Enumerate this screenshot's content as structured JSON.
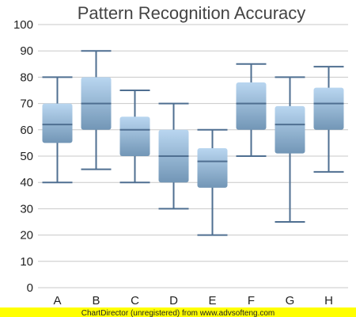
{
  "footer": {
    "text": "ChartDirector (unregistered) from www.advsofteng.com",
    "background": "#ffff00"
  },
  "chart_data": {
    "type": "box",
    "title": "Pattern Recognition Accuracy",
    "xlabel": "",
    "ylabel": "",
    "ylim": [
      0,
      100
    ],
    "yticks": [
      0,
      10,
      20,
      30,
      40,
      50,
      60,
      70,
      80,
      90,
      100
    ],
    "grid": true,
    "categories": [
      "A",
      "B",
      "C",
      "D",
      "E",
      "F",
      "G",
      "H"
    ],
    "boxes": [
      {
        "low": 40,
        "q1": 55,
        "median": 62,
        "q3": 70,
        "high": 80
      },
      {
        "low": 45,
        "q1": 60,
        "median": 70,
        "q3": 80,
        "high": 90
      },
      {
        "low": 40,
        "q1": 50,
        "median": 60,
        "q3": 65,
        "high": 75
      },
      {
        "low": 30,
        "q1": 40,
        "median": 50,
        "q3": 60,
        "high": 70
      },
      {
        "low": 20,
        "q1": 38,
        "median": 48,
        "q3": 53,
        "high": 60
      },
      {
        "low": 50,
        "q1": 60,
        "median": 70,
        "q3": 78,
        "high": 85
      },
      {
        "low": 25,
        "q1": 51,
        "median": 62,
        "q3": 69,
        "high": 80
      },
      {
        "low": 44,
        "q1": 60,
        "median": 70,
        "q3": 76,
        "high": 84
      }
    ],
    "colors": {
      "box_top": "#b9d6f0",
      "box_bottom": "#7296b6",
      "whisker": "#4f6f91"
    }
  }
}
